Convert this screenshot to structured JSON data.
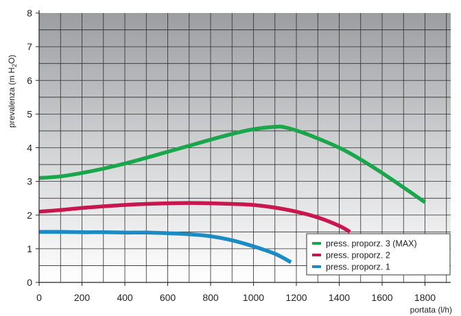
{
  "chart_data": {
    "type": "line",
    "xlabel": "portata (l/h)",
    "ylabel": "prevalenza (m H",
    "ylabel_sub": "2",
    "ylabel_tail": "O)",
    "xlim": [
      0,
      1920
    ],
    "ylim": [
      0,
      8
    ],
    "x_ticks": [
      0,
      200,
      400,
      600,
      800,
      1000,
      1200,
      1400,
      1600,
      1800
    ],
    "y_ticks": [
      0,
      1,
      2,
      3,
      4,
      5,
      6,
      7,
      8
    ],
    "grid": true,
    "legend_position": "bottom-right",
    "series": [
      {
        "name": "press. proporz. 3 (MAX)",
        "color": "#1aa64b",
        "points": [
          [
            0,
            3.1
          ],
          [
            100,
            3.15
          ],
          [
            200,
            3.25
          ],
          [
            300,
            3.38
          ],
          [
            400,
            3.53
          ],
          [
            500,
            3.7
          ],
          [
            600,
            3.88
          ],
          [
            700,
            4.06
          ],
          [
            800,
            4.24
          ],
          [
            900,
            4.41
          ],
          [
            1000,
            4.55
          ],
          [
            1100,
            4.62
          ],
          [
            1150,
            4.6
          ],
          [
            1250,
            4.4
          ],
          [
            1400,
            4.0
          ],
          [
            1500,
            3.65
          ],
          [
            1600,
            3.25
          ],
          [
            1700,
            2.82
          ],
          [
            1800,
            2.38
          ]
        ]
      },
      {
        "name": "press. proporz. 2",
        "color": "#c8174e",
        "points": [
          [
            0,
            2.1
          ],
          [
            100,
            2.15
          ],
          [
            200,
            2.21
          ],
          [
            300,
            2.26
          ],
          [
            400,
            2.3
          ],
          [
            500,
            2.33
          ],
          [
            600,
            2.35
          ],
          [
            700,
            2.36
          ],
          [
            800,
            2.35
          ],
          [
            900,
            2.33
          ],
          [
            1000,
            2.3
          ],
          [
            1100,
            2.22
          ],
          [
            1200,
            2.1
          ],
          [
            1300,
            1.93
          ],
          [
            1400,
            1.68
          ],
          [
            1450,
            1.5
          ]
        ]
      },
      {
        "name": "press. proporz. 1",
        "color": "#1a8bc4",
        "points": [
          [
            0,
            1.5
          ],
          [
            100,
            1.5
          ],
          [
            200,
            1.49
          ],
          [
            300,
            1.49
          ],
          [
            400,
            1.48
          ],
          [
            500,
            1.48
          ],
          [
            600,
            1.46
          ],
          [
            700,
            1.43
          ],
          [
            800,
            1.37
          ],
          [
            900,
            1.25
          ],
          [
            1000,
            1.07
          ],
          [
            1100,
            0.85
          ],
          [
            1175,
            0.6
          ]
        ]
      }
    ]
  }
}
